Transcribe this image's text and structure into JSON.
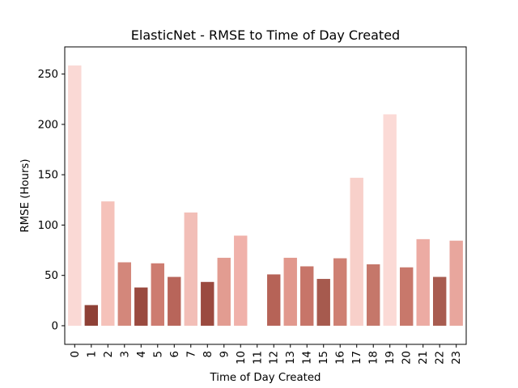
{
  "chart_data": {
    "type": "bar",
    "title": "ElasticNet - RMSE to Time of Day Created",
    "xlabel": "Time of Day Created",
    "ylabel": "RMSE (Hours)",
    "categories": [
      "0",
      "1",
      "2",
      "3",
      "4",
      "5",
      "6",
      "7",
      "8",
      "9",
      "10",
      "11",
      "12",
      "13",
      "14",
      "15",
      "16",
      "17",
      "18",
      "19",
      "20",
      "21",
      "22",
      "23"
    ],
    "values": [
      258.5,
      20.5,
      123.5,
      63,
      38,
      62,
      48.5,
      112.5,
      43.5,
      67.5,
      89.5,
      0,
      51,
      67.5,
      59,
      46.5,
      67,
      147,
      61,
      210,
      58,
      86,
      48.5,
      84.5
    ],
    "yticks": [
      0,
      50,
      100,
      150,
      200,
      250
    ],
    "ylim": [
      -18.5,
      277
    ],
    "grid": false,
    "colors": [
      "#fad9d5",
      "#8e4036",
      "#f5c2ba",
      "#d3877b",
      "#9a4a3f",
      "#cd7c70",
      "#b8655a",
      "#f2beb7",
      "#9b4a3f",
      "#e29c91",
      "#f0b1aa",
      "#ffffff",
      "#b66357",
      "#e1988d",
      "#c77569",
      "#a65a4e",
      "#ce8073",
      "#f8d0ca",
      "#c5776a",
      "#fbdad6",
      "#c8786b",
      "#ecaba3",
      "#a85c50",
      "#e8a69d"
    ]
  }
}
